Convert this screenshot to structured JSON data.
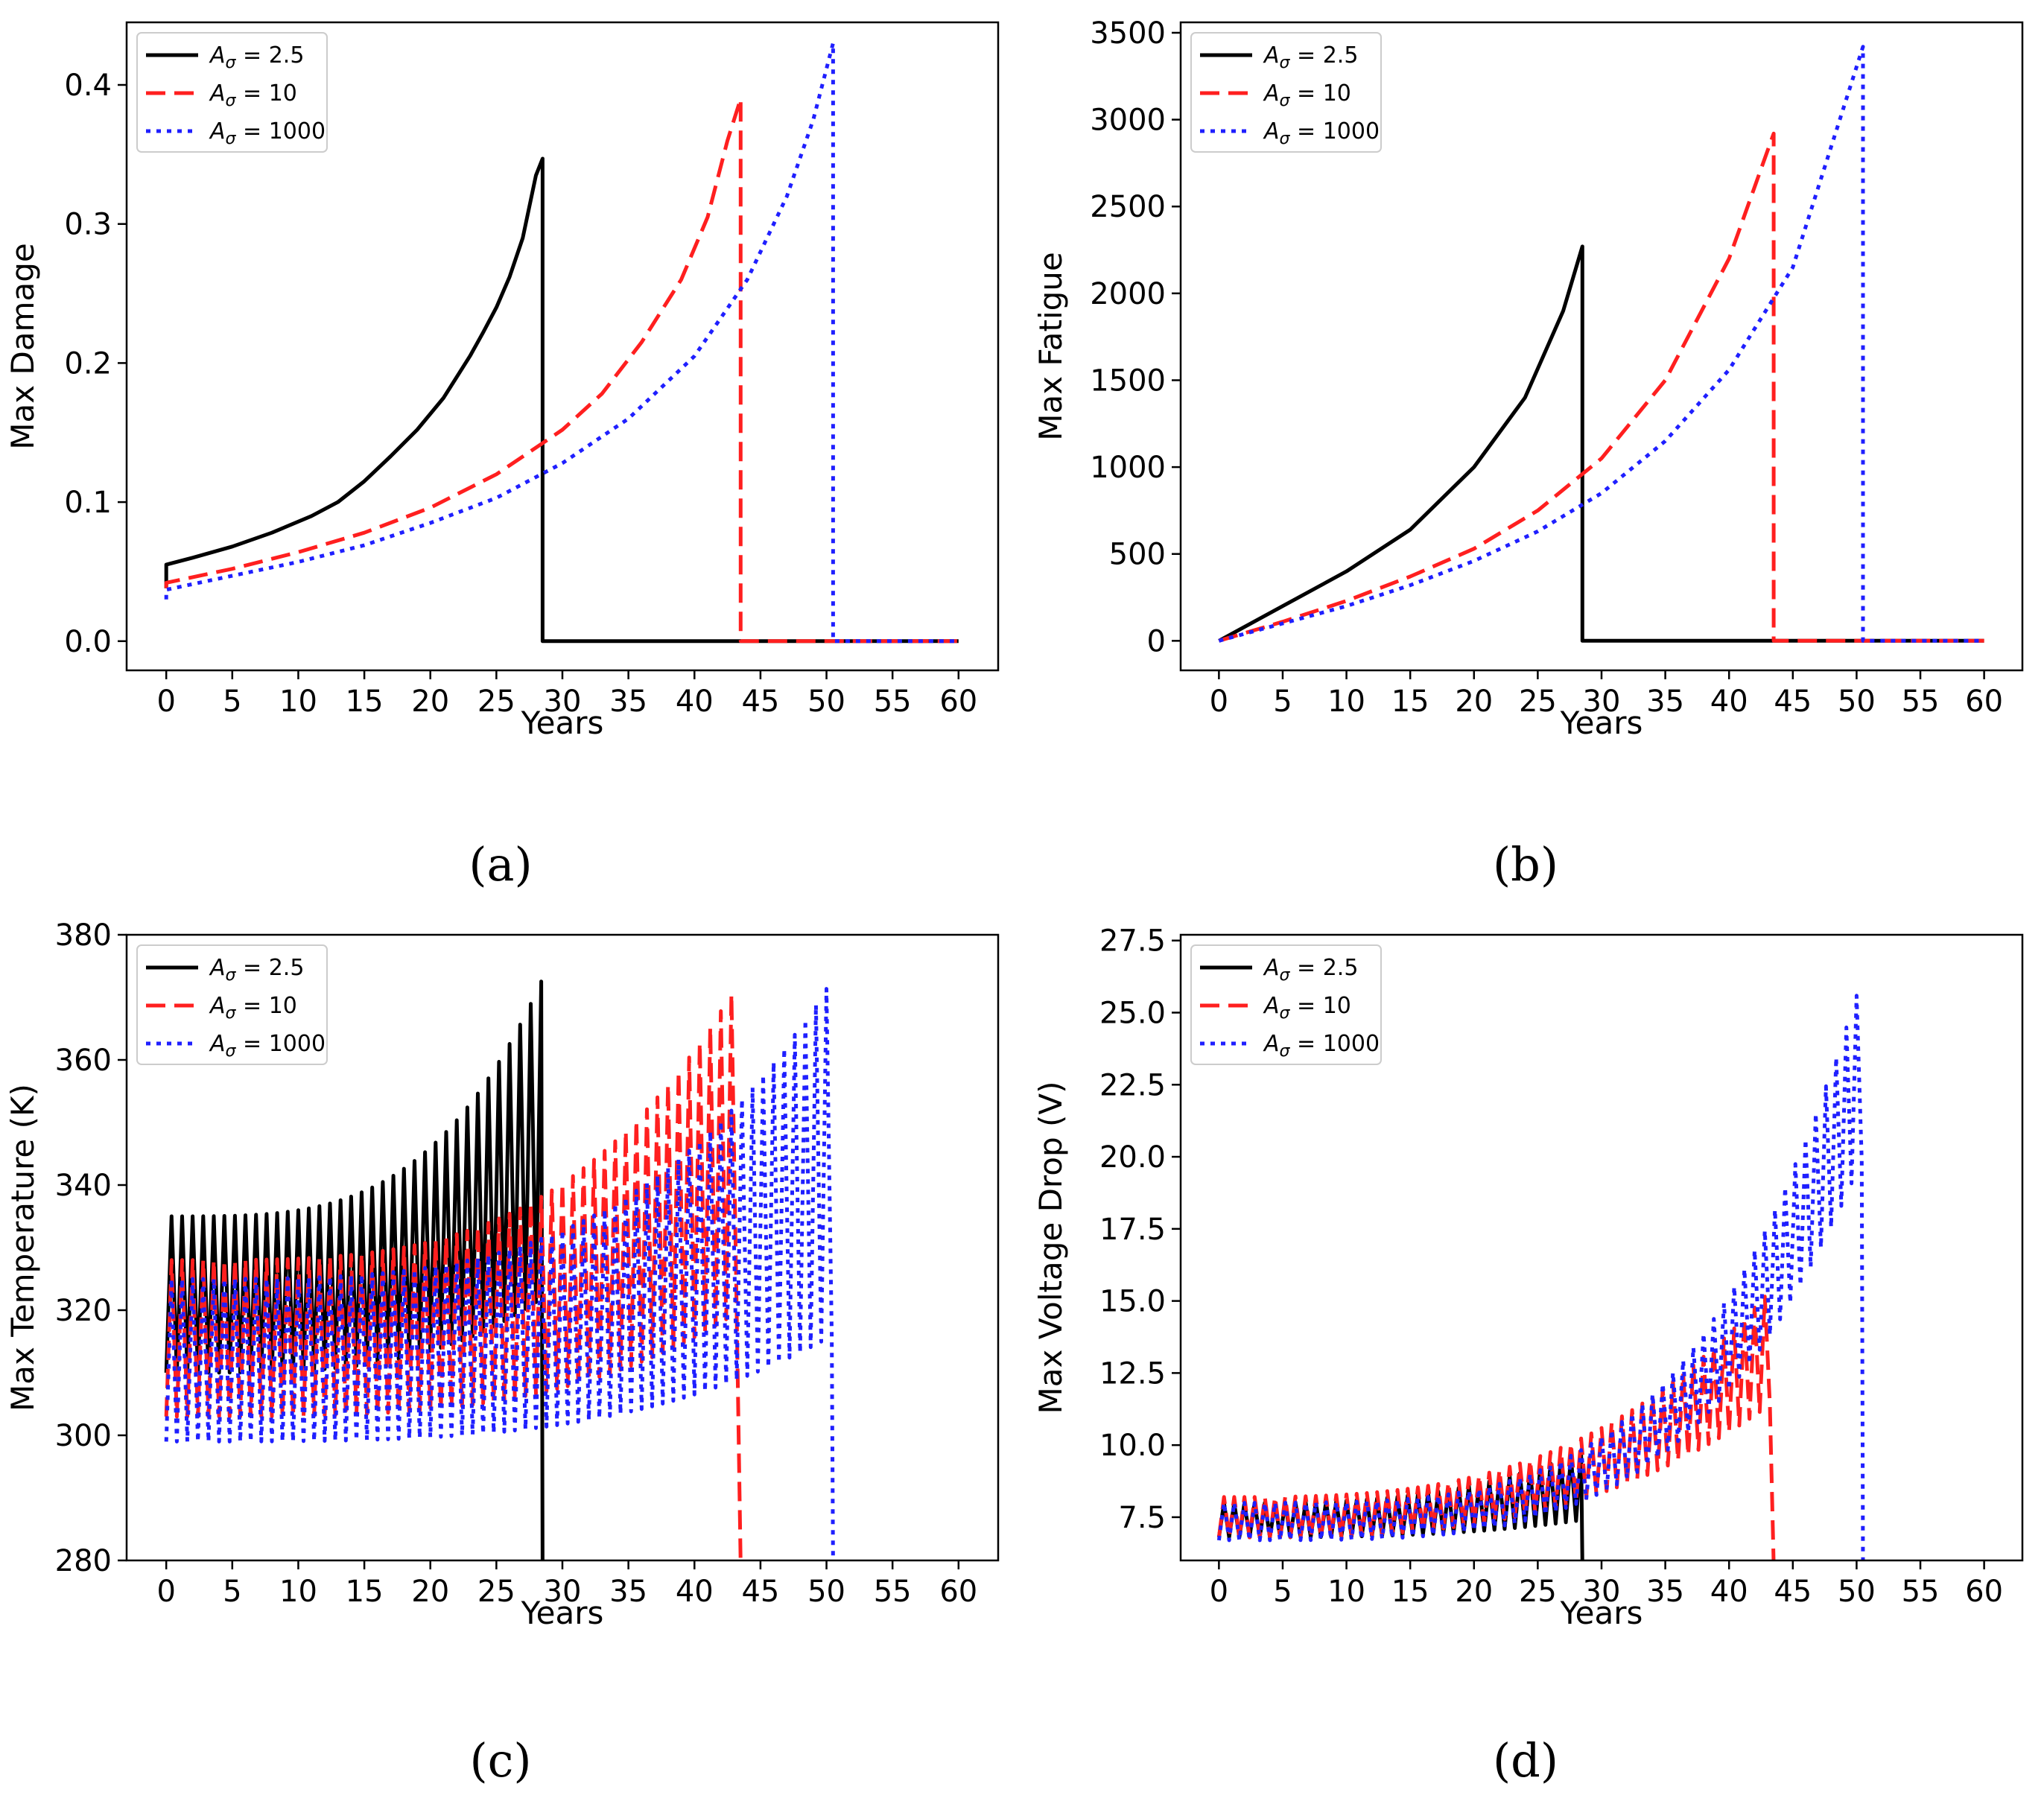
{
  "chart_data": [
    {
      "type": "line",
      "panel": "(a)",
      "xlabel": "Years",
      "ylabel": "Max Damage",
      "xlim": [
        -3,
        63
      ],
      "ylim": [
        -0.021,
        0.445
      ],
      "xticks": [
        0,
        5,
        10,
        15,
        20,
        25,
        30,
        35,
        40,
        45,
        50,
        55,
        60
      ],
      "yticks": [
        0.0,
        0.1,
        0.2,
        0.3,
        0.4
      ],
      "ytick_labels": [
        "0.0",
        "0.1",
        "0.2",
        "0.3",
        "0.4"
      ],
      "legend": "top-left",
      "grid": false,
      "series": [
        {
          "name": "A_σ = 2.5",
          "color": "#000000",
          "dash": "solid",
          "x": [
            0,
            0,
            2,
            5,
            8,
            11,
            13,
            15,
            17,
            19,
            21,
            23,
            24,
            25,
            26,
            27,
            28,
            28.5,
            28.5,
            60
          ],
          "y": [
            0.038,
            0.055,
            0.06,
            0.068,
            0.078,
            0.09,
            0.1,
            0.115,
            0.133,
            0.152,
            0.175,
            0.205,
            0.222,
            0.24,
            0.262,
            0.29,
            0.335,
            0.347,
            0.0,
            0.0
          ]
        },
        {
          "name": "A_σ = 10",
          "color": "#ff1f1f",
          "dash": "dashed",
          "x": [
            0,
            0,
            5,
            10,
            15,
            20,
            25,
            30,
            33,
            36,
            39,
            41,
            42.5,
            43.5,
            43.5,
            60
          ],
          "y": [
            0.038,
            0.042,
            0.052,
            0.064,
            0.078,
            0.096,
            0.12,
            0.152,
            0.178,
            0.215,
            0.26,
            0.305,
            0.36,
            0.39,
            0.0,
            0.0
          ]
        },
        {
          "name": "A_σ = 1000",
          "color": "#1f1fff",
          "dash": "dotted",
          "x": [
            0,
            0,
            5,
            10,
            15,
            20,
            25,
            30,
            35,
            40,
            44,
            47,
            49,
            50.5,
            50.5,
            60
          ],
          "y": [
            0.03,
            0.037,
            0.047,
            0.057,
            0.069,
            0.085,
            0.103,
            0.128,
            0.16,
            0.205,
            0.26,
            0.32,
            0.375,
            0.43,
            0.0,
            0.0
          ]
        }
      ]
    },
    {
      "type": "line",
      "panel": "(b)",
      "xlabel": "Years",
      "ylabel": "Max Fatigue",
      "xlim": [
        -3,
        63
      ],
      "ylim": [
        -170,
        3560
      ],
      "xticks": [
        0,
        5,
        10,
        15,
        20,
        25,
        30,
        35,
        40,
        45,
        50,
        55,
        60
      ],
      "yticks": [
        0,
        500,
        1000,
        1500,
        2000,
        2500,
        3000,
        3500
      ],
      "ytick_labels": [
        "0",
        "500",
        "1000",
        "1500",
        "2000",
        "2500",
        "3000",
        "3500"
      ],
      "legend": "top-left",
      "grid": false,
      "series": [
        {
          "name": "A_σ = 2.5",
          "color": "#000000",
          "dash": "solid",
          "x": [
            0,
            5,
            10,
            15,
            20,
            24,
            27,
            28.5,
            28.5,
            60
          ],
          "y": [
            0,
            200,
            400,
            640,
            1000,
            1400,
            1900,
            2270,
            0,
            0
          ]
        },
        {
          "name": "A_σ = 10",
          "color": "#ff1f1f",
          "dash": "dashed",
          "x": [
            0,
            5,
            10,
            15,
            20,
            25,
            30,
            35,
            40,
            43.5,
            43.5,
            60
          ],
          "y": [
            0,
            110,
            230,
            370,
            530,
            750,
            1050,
            1500,
            2200,
            2920,
            0,
            0
          ]
        },
        {
          "name": "A_σ = 1000",
          "color": "#1f1fff",
          "dash": "dotted",
          "x": [
            0,
            5,
            10,
            15,
            20,
            25,
            30,
            35,
            40,
            45,
            50.5,
            50.5,
            60
          ],
          "y": [
            0,
            100,
            200,
            320,
            460,
            630,
            850,
            1150,
            1560,
            2150,
            3420,
            0,
            0
          ]
        }
      ]
    },
    {
      "type": "line",
      "panel": "(c)",
      "xlabel": "Years",
      "ylabel": "Max Temperature (K)",
      "xlim": [
        -3,
        63
      ],
      "ylim": [
        280,
        380
      ],
      "xticks": [
        0,
        5,
        10,
        15,
        20,
        25,
        30,
        35,
        40,
        45,
        50,
        55,
        60
      ],
      "yticks": [
        280,
        300,
        320,
        340,
        360,
        380
      ],
      "ytick_labels": [
        "280",
        "300",
        "320",
        "340",
        "360",
        "380"
      ],
      "legend": "top-left",
      "grid": false,
      "series": [
        {
          "name": "A_σ = 2.5",
          "color": "#000000",
          "dash": "solid",
          "end": 28.5,
          "period": 0.8,
          "low_start": 310,
          "low_end": 322,
          "high_start": 335,
          "high_end": 373,
          "power": 3.5
        },
        {
          "name": "A_σ = 10",
          "color": "#ff1f1f",
          "dash": "dashed",
          "end": 43.5,
          "period": 0.8,
          "low_start": 303,
          "low_end": 320,
          "high_start": 328,
          "high_end": 373,
          "power": 3.5
        },
        {
          "name": "A_σ = 1000",
          "color": "#1f1fff",
          "dash": "dotted",
          "end": 50.5,
          "period": 0.8,
          "low_start": 299,
          "low_end": 316,
          "high_start": 325,
          "high_end": 373,
          "power": 3.5
        }
      ]
    },
    {
      "type": "line",
      "panel": "(d)",
      "xlabel": "Years",
      "ylabel": "Max Voltage Drop (V)",
      "xlim": [
        -3,
        63
      ],
      "ylim": [
        6.0,
        27.7
      ],
      "xticks": [
        0,
        5,
        10,
        15,
        20,
        25,
        30,
        35,
        40,
        45,
        50,
        55,
        60
      ],
      "yticks": [
        7.5,
        10.0,
        12.5,
        15.0,
        17.5,
        20.0,
        22.5,
        25.0,
        27.5
      ],
      "ytick_labels": [
        "7.5",
        "10.0",
        "12.5",
        "15.0",
        "17.5",
        "20.0",
        "22.5",
        "25.0",
        "27.5"
      ],
      "legend": "top-left",
      "grid": false,
      "series": [
        {
          "name": "A_σ = 2.5",
          "color": "#000000",
          "dash": "solid",
          "end": 28.5,
          "period": 0.8,
          "low_start": 6.8,
          "low_end": 7.4,
          "high_start": 8.0,
          "high_end": 9.8,
          "power": 3.0
        },
        {
          "name": "A_σ = 10",
          "color": "#ff1f1f",
          "dash": "dashed",
          "end": 43.5,
          "period": 0.8,
          "low_start": 6.8,
          "low_end": 11.5,
          "high_start": 8.2,
          "high_end": 15.5,
          "power": 3.0
        },
        {
          "name": "A_σ = 1000",
          "color": "#1f1fff",
          "dash": "dotted",
          "end": 50.5,
          "period": 0.8,
          "low_start": 6.7,
          "low_end": 20.0,
          "high_start": 8.0,
          "high_end": 26.3,
          "power": 4.0
        }
      ]
    }
  ],
  "captions": [
    "(a)",
    "(b)",
    "(c)",
    "(d)"
  ],
  "legend_entries": [
    {
      "symbol": "A",
      "sub": "σ",
      "rest": " = 2.5"
    },
    {
      "symbol": "A",
      "sub": "σ",
      "rest": " = 10"
    },
    {
      "symbol": "A",
      "sub": "σ",
      "rest": " = 1000"
    }
  ]
}
